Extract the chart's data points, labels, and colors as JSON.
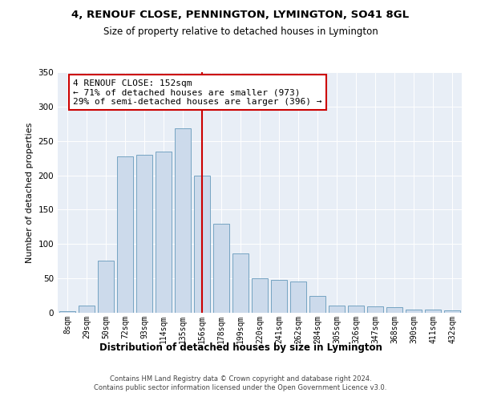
{
  "title1": "4, RENOUF CLOSE, PENNINGTON, LYMINGTON, SO41 8GL",
  "title2": "Size of property relative to detached houses in Lymington",
  "xlabel": "Distribution of detached houses by size in Lymington",
  "ylabel": "Number of detached properties",
  "categories": [
    "8sqm",
    "29sqm",
    "50sqm",
    "72sqm",
    "93sqm",
    "114sqm",
    "135sqm",
    "156sqm",
    "178sqm",
    "199sqm",
    "220sqm",
    "241sqm",
    "262sqm",
    "284sqm",
    "305sqm",
    "326sqm",
    "347sqm",
    "368sqm",
    "390sqm",
    "411sqm",
    "432sqm"
  ],
  "bar_heights": [
    2,
    10,
    76,
    228,
    230,
    235,
    268,
    200,
    130,
    86,
    50,
    48,
    46,
    25,
    11,
    10,
    9,
    8,
    5,
    5,
    3
  ],
  "property_line_x": 7.0,
  "annotation_text": "4 RENOUF CLOSE: 152sqm\n← 71% of detached houses are smaller (973)\n29% of semi-detached houses are larger (396) →",
  "bar_color": "#ccdaeb",
  "bar_edge_color": "#6699bb",
  "line_color": "#cc0000",
  "annotation_box_color": "#ffffff",
  "annotation_box_edge": "#cc0000",
  "background_color": "#e8eef6",
  "footer_text": "Contains HM Land Registry data © Crown copyright and database right 2024.\nContains public sector information licensed under the Open Government Licence v3.0.",
  "ylim": [
    0,
    350
  ],
  "yticks": [
    0,
    50,
    100,
    150,
    200,
    250,
    300,
    350
  ]
}
